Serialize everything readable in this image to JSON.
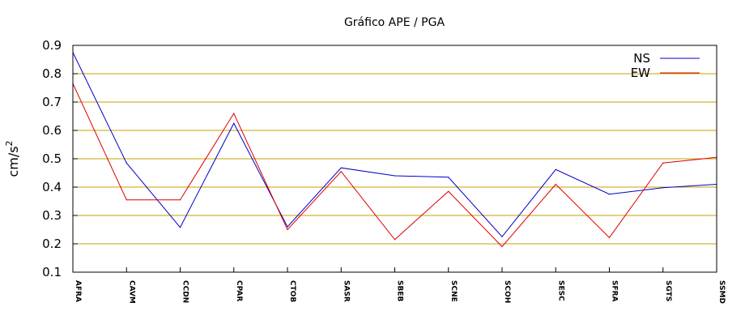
{
  "chart_data": {
    "type": "line",
    "title": "Gráfico  APE / PGA",
    "xlabel": "",
    "ylabel": "cm/s",
    "ylabel_superscript": "2",
    "categories": [
      "AFRA",
      "CAVM",
      "CCDN",
      "CPAR",
      "CTOB",
      "SASR",
      "SBEB",
      "SCNE",
      "SCOH",
      "SESC",
      "SFRA",
      "SGTS",
      "SSMD"
    ],
    "ylim": [
      0.1,
      0.9
    ],
    "yticks": [
      "0.1",
      "0.2",
      "0.3",
      "0.4",
      "0.5",
      "0.6",
      "0.7",
      "0.8",
      "0.9"
    ],
    "grid": true,
    "grid_color": "#c8a000",
    "legend_position": "top-right",
    "series": [
      {
        "name": "NS",
        "color": "#0000cc",
        "values": [
          0.875,
          0.485,
          0.258,
          0.625,
          0.26,
          0.468,
          0.44,
          0.435,
          0.225,
          0.462,
          0.375,
          0.398,
          0.41
        ]
      },
      {
        "name": "EW",
        "color": "#dd0000",
        "values": [
          0.765,
          0.355,
          0.355,
          0.66,
          0.25,
          0.455,
          0.215,
          0.385,
          0.19,
          0.41,
          0.222,
          0.485,
          0.505
        ]
      }
    ]
  }
}
